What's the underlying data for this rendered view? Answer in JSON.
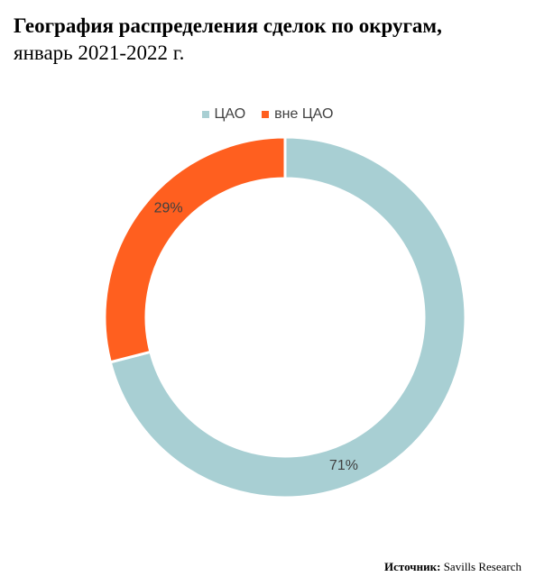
{
  "chart_data": {
    "type": "pie",
    "title": "География распределения сделок по округам,",
    "subtitle": "январь 2021-2022 г.",
    "categories": [
      "ЦАО",
      "вне ЦАО"
    ],
    "values": [
      71,
      29
    ],
    "labels": [
      "71%",
      "29%"
    ],
    "colors": [
      "#A8CFD3",
      "#FF5F1F"
    ],
    "legend_position": "top",
    "donut": true
  },
  "source": {
    "label": "Источник:",
    "value": "Savills Research"
  }
}
